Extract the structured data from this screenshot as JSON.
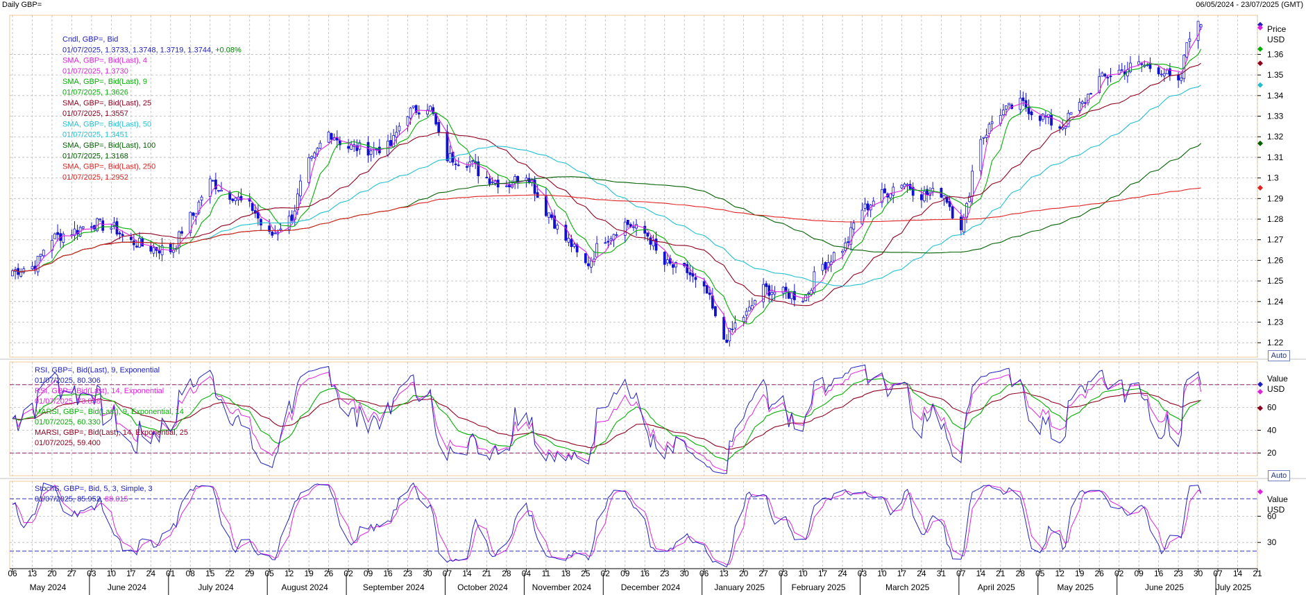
{
  "header": {
    "title": "Daily GBP=",
    "range": "06/05/2024 - 23/07/2025 (GMT)"
  },
  "price_panel": {
    "unit_top": "Price",
    "unit_bottom": "USD",
    "auto": "Auto",
    "legend": [
      {
        "text": "Cndl, GBP=, Bid",
        "color": "#2020c0"
      },
      {
        "text": "01/07/2025, 1.3733, 1.3748, 1.3719, 1.3744, ",
        "color": "#2020c0",
        "extra": "+0.08%",
        "extra_color": "#008000"
      },
      {
        "text": "SMA, GBP=, Bid(Last),  4",
        "color": "#e020e0"
      },
      {
        "text": "01/07/2025, 1.3730",
        "color": "#e020e0"
      },
      {
        "text": "SMA, GBP=, Bid(Last),  9",
        "color": "#00b000"
      },
      {
        "text": "01/07/2025, 1.3626",
        "color": "#00b000"
      },
      {
        "text": "SMA, GBP=, Bid(Last),  25",
        "color": "#900020"
      },
      {
        "text": "01/07/2025, 1.3557",
        "color": "#900020"
      },
      {
        "text": "SMA, GBP=, Bid(Last),  50",
        "color": "#20c0d0"
      },
      {
        "text": "01/07/2025, 1.3451",
        "color": "#20c0d0"
      },
      {
        "text": "SMA, GBP=, Bid(Last),  100",
        "color": "#006000"
      },
      {
        "text": "01/07/2025, 1.3168",
        "color": "#006000"
      },
      {
        "text": "SMA, GBP=, Bid(Last),  250",
        "color": "#e02020"
      },
      {
        "text": "01/07/2025, 1.2952",
        "color": "#e02020"
      }
    ],
    "y_ticks": [
      "1.36",
      "1.35",
      "1.34",
      "1.33",
      "1.32",
      "1.31",
      "1.3",
      "1.29",
      "1.28",
      "1.27",
      "1.26",
      "1.25",
      "1.24",
      "1.23",
      "1.22"
    ]
  },
  "rsi_panel": {
    "unit_top": "Value",
    "unit_bottom": "USD",
    "auto": "Auto",
    "legend": [
      {
        "text": "RSI, GBP=, Bid(Last),  9, Exponential",
        "color": "#2020c0"
      },
      {
        "text": "01/07/2025, 80.306",
        "color": "#2020c0"
      },
      {
        "text": "RSI, GBP=, Bid(Last),  14, Exponential",
        "color": "#e020e0"
      },
      {
        "text": "01/07/2025, 73.858",
        "color": "#e020e0"
      },
      {
        "text": "MARSI, GBP=, Bid(Last),  9, Exponential, 14",
        "color": "#00b000"
      },
      {
        "text": "01/07/2025, 60.330",
        "color": "#00b000"
      },
      {
        "text": "MARSI, GBP=, Bid(Last),  14, Exponential, 25",
        "color": "#900020"
      },
      {
        "text": "01/07/2025, 59.400",
        "color": "#900020"
      }
    ],
    "y_ticks": [
      "60",
      "40",
      "20"
    ]
  },
  "stoch_panel": {
    "unit_top": "Value",
    "unit_bottom": "USD",
    "legend": [
      {
        "text": "StochS, GBP=, Bid,  5, 3, Simple, 3",
        "color": "#2020c0"
      },
      {
        "text": "01/07/2025, ",
        "color": "#2020c0",
        "extra": "85.952, ",
        "extra_color": "#2020c0",
        "extra2": "88.015",
        "extra2_color": "#e020e0"
      }
    ],
    "y_ticks": [
      "60",
      "30"
    ]
  },
  "x_axis": {
    "day_ticks": [
      "06",
      "13",
      "20",
      "27",
      "03",
      "10",
      "17",
      "24",
      "01",
      "08",
      "15",
      "22",
      "29",
      "05",
      "12",
      "19",
      "26",
      "02",
      "09",
      "16",
      "23",
      "30",
      "07",
      "14",
      "21",
      "28",
      "04",
      "11",
      "18",
      "25",
      "02",
      "09",
      "16",
      "23",
      "30",
      "06",
      "13",
      "20",
      "27",
      "03",
      "10",
      "17",
      "24",
      "03",
      "10",
      "17",
      "24",
      "31",
      "07",
      "14",
      "21",
      "28",
      "05",
      "12",
      "19",
      "26",
      "02",
      "09",
      "16",
      "23",
      "30",
      "07",
      "14",
      "21"
    ],
    "months": [
      "May 2024",
      "June 2024",
      "July 2024",
      "August 2024",
      "September 2024",
      "October 2024",
      "November 2024",
      "December 2024",
      "January 2025",
      "February 2025",
      "March 2025",
      "April 2025",
      "May 2025",
      "June 2025",
      "July 2025"
    ]
  },
  "chart_data": {
    "type": "line",
    "instrument": "GBP=",
    "x_range": [
      "2024-05-06",
      "2025-07-21"
    ],
    "price_ylim": [
      1.213,
      1.379
    ],
    "close_anchors": [
      [
        "2024-05-06",
        1.255
      ],
      [
        "2024-05-13",
        1.257
      ],
      [
        "2024-05-20",
        1.271
      ],
      [
        "2024-05-27",
        1.274
      ],
      [
        "2024-06-03",
        1.278
      ],
      [
        "2024-06-10",
        1.276
      ],
      [
        "2024-06-17",
        1.269
      ],
      [
        "2024-06-24",
        1.266
      ],
      [
        "2024-07-01",
        1.265
      ],
      [
        "2024-07-08",
        1.281
      ],
      [
        "2024-07-15",
        1.298
      ],
      [
        "2024-07-22",
        1.292
      ],
      [
        "2024-07-29",
        1.286
      ],
      [
        "2024-08-05",
        1.272
      ],
      [
        "2024-08-12",
        1.28
      ],
      [
        "2024-08-19",
        1.307
      ],
      [
        "2024-08-26",
        1.322
      ],
      [
        "2024-09-02",
        1.315
      ],
      [
        "2024-09-09",
        1.314
      ],
      [
        "2024-09-16",
        1.315
      ],
      [
        "2024-09-23",
        1.332
      ],
      [
        "2024-09-30",
        1.335
      ],
      [
        "2024-10-07",
        1.31
      ],
      [
        "2024-10-14",
        1.308
      ],
      [
        "2024-10-21",
        1.3
      ],
      [
        "2024-10-28",
        1.297
      ],
      [
        "2024-11-04",
        1.302
      ],
      [
        "2024-11-11",
        1.284
      ],
      [
        "2024-11-18",
        1.27
      ],
      [
        "2024-11-25",
        1.258
      ],
      [
        "2024-12-02",
        1.271
      ],
      [
        "2024-12-09",
        1.278
      ],
      [
        "2024-12-16",
        1.273
      ],
      [
        "2024-12-23",
        1.258
      ],
      [
        "2024-12-30",
        1.255
      ],
      [
        "2025-01-06",
        1.245
      ],
      [
        "2025-01-13",
        1.222
      ],
      [
        "2025-01-20",
        1.233
      ],
      [
        "2025-01-27",
        1.246
      ],
      [
        "2025-02-03",
        1.244
      ],
      [
        "2025-02-10",
        1.242
      ],
      [
        "2025-02-17",
        1.258
      ],
      [
        "2025-02-24",
        1.266
      ],
      [
        "2025-03-03",
        1.285
      ],
      [
        "2025-03-10",
        1.292
      ],
      [
        "2025-03-17",
        1.298
      ],
      [
        "2025-03-24",
        1.292
      ],
      [
        "2025-03-31",
        1.293
      ],
      [
        "2025-04-07",
        1.277
      ],
      [
        "2025-04-14",
        1.32
      ],
      [
        "2025-04-21",
        1.332
      ],
      [
        "2025-04-28",
        1.336
      ],
      [
        "2025-05-05",
        1.33
      ],
      [
        "2025-05-12",
        1.325
      ],
      [
        "2025-05-19",
        1.335
      ],
      [
        "2025-05-26",
        1.348
      ],
      [
        "2025-06-02",
        1.352
      ],
      [
        "2025-06-09",
        1.355
      ],
      [
        "2025-06-16",
        1.353
      ],
      [
        "2025-06-23",
        1.345
      ],
      [
        "2025-06-27",
        1.37
      ],
      [
        "2025-07-01",
        1.3744
      ]
    ],
    "last_candle": {
      "date": "2025-07-01",
      "open": 1.3733,
      "high": 1.3748,
      "low": 1.3719,
      "close": 1.3744,
      "change_pct": "+0.08%"
    },
    "sma_series": [
      {
        "name": "SMA, GBP=, Bid(Last),  4",
        "period": 4,
        "color": "#e020e0",
        "last": 1.373
      },
      {
        "name": "SMA, GBP=, Bid(Last),  9",
        "period": 9,
        "color": "#00b000",
        "last": 1.3626
      },
      {
        "name": "SMA, GBP=, Bid(Last),  25",
        "period": 25,
        "color": "#900020",
        "last": 1.3557
      },
      {
        "name": "SMA, GBP=, Bid(Last),  50",
        "period": 50,
        "color": "#20c0d0",
        "last": 1.3451
      },
      {
        "name": "SMA, GBP=, Bid(Last),  100",
        "period": 100,
        "color": "#006000",
        "last": 1.3168
      },
      {
        "name": "SMA, GBP=, Bid(Last),  250",
        "period": 250,
        "color": "#e02020",
        "last": 1.2952
      }
    ],
    "rsi": {
      "ylim": [
        0,
        100
      ],
      "levels": [
        20,
        80
      ],
      "last": {
        "rsi9": 80.306,
        "rsi14": 73.858,
        "marsi9": 60.33,
        "marsi14": 59.4
      }
    },
    "stoch": {
      "ylim": [
        0,
        100
      ],
      "levels": [
        20,
        80
      ],
      "last": {
        "k": 85.952,
        "d": 88.015
      }
    },
    "colors": {
      "candle": "#1010d0",
      "grid": "#b8b8b8",
      "panel_border": "#f0c890",
      "level_line": "#404090"
    }
  }
}
